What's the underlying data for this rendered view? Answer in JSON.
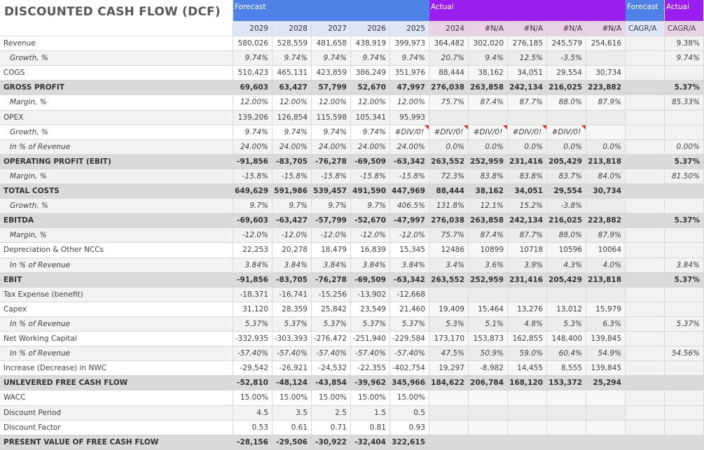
{
  "title": "DISCOUNTED CASH FLOW (DCF)",
  "colors": {
    "forecast_header": "#4f81e6",
    "actual_header": "#9b1ef0",
    "subheader_pink": "#ead1e4",
    "shaded_row": "#dadada",
    "light_row": "#f2f2f2",
    "error_flag": "#e0302a"
  },
  "headers": {
    "forecast": "Forecast",
    "actual": "Actual",
    "cagr_forecast": "Forecast",
    "cagr_actual": "Actual",
    "years": [
      "2029",
      "2028",
      "2027",
      "2026",
      "2025",
      "2024",
      "#N/A",
      "#N/A",
      "#N/A",
      "#N/A"
    ],
    "cagr_forecast_sub": "CAGR/A",
    "cagr_actual_sub": "CAGR/A"
  },
  "rows": [
    {
      "label": "Revenue",
      "style": "normal",
      "values": [
        "580,026",
        "528,559",
        "481,658",
        "438,919",
        "399,973",
        "364,482",
        "302,020",
        "276,185",
        "245,579",
        "254,616",
        "",
        "9.38%"
      ]
    },
    {
      "label": "Growth, %",
      "style": "sub",
      "values": [
        "9.74%",
        "9.74%",
        "9.74%",
        "9.74%",
        "9.74%",
        "20.7%",
        "9.4%",
        "12.5%",
        "-3.5%",
        "",
        "",
        "9.74%"
      ]
    },
    {
      "label": "COGS",
      "style": "normal",
      "values": [
        "510,423",
        "465,131",
        "423,859",
        "386,249",
        "351,976",
        "88,444",
        "38,162",
        "34,051",
        "29,554",
        "30,734",
        "",
        ""
      ]
    },
    {
      "label": "GROSS PROFIT",
      "style": "bold",
      "values": [
        "69,603",
        "63,427",
        "57,799",
        "52,670",
        "47,997",
        "276,038",
        "263,858",
        "242,134",
        "216,025",
        "223,882",
        "",
        "5.37%"
      ]
    },
    {
      "label": "Margin, %",
      "style": "sub",
      "values": [
        "12.00%",
        "12.00%",
        "12.00%",
        "12.00%",
        "12.00%",
        "75.7%",
        "87.4%",
        "87.7%",
        "88.0%",
        "87.9%",
        "",
        "85.33%"
      ]
    },
    {
      "label": "OPEX",
      "style": "normal",
      "values": [
        "139,206",
        "126,854",
        "115,598",
        "105,341",
        "95,993",
        "",
        "",
        "",
        "",
        "",
        "",
        ""
      ]
    },
    {
      "label": "Growth, %",
      "style": "sub",
      "values": [
        "9.74%",
        "9.74%",
        "9.74%",
        "9.74%",
        "#DIV/0!",
        "#DIV/0!",
        "#DIV/0!",
        "#DIV/0!",
        "#DIV/0!",
        "",
        "",
        ""
      ]
    },
    {
      "label": "In % of Revenue",
      "style": "sub",
      "values": [
        "24.00%",
        "24.00%",
        "24.00%",
        "24.00%",
        "24.00%",
        "0.0%",
        "0.0%",
        "0.0%",
        "0.0%",
        "0.0%",
        "",
        "0.00%"
      ]
    },
    {
      "label": "OPERATING PROFIT (EBIT)",
      "style": "bold",
      "values": [
        "-91,856",
        "-83,705",
        "-76,278",
        "-69,509",
        "-63,342",
        "263,552",
        "252,959",
        "231,416",
        "205,429",
        "213,818",
        "",
        "5.37%"
      ]
    },
    {
      "label": "Margin, %",
      "style": "sub",
      "values": [
        "-15.8%",
        "-15.8%",
        "-15.8%",
        "-15.8%",
        "-15.8%",
        "72.3%",
        "83.8%",
        "83.8%",
        "83.7%",
        "84.0%",
        "",
        "81.50%"
      ]
    },
    {
      "label": "TOTAL COSTS",
      "style": "bold",
      "values": [
        "649,629",
        "591,986",
        "539,457",
        "491,590",
        "447,969",
        "88,444",
        "38,162",
        "34,051",
        "29,554",
        "30,734",
        "",
        ""
      ]
    },
    {
      "label": "Growth, %",
      "style": "sub",
      "values": [
        "9.7%",
        "9.7%",
        "9.7%",
        "9.7%",
        "406.5%",
        "131.8%",
        "12.1%",
        "15.2%",
        "-3.8%",
        "",
        "",
        ""
      ]
    },
    {
      "label": "EBITDA",
      "style": "bold",
      "values": [
        "-69,603",
        "-63,427",
        "-57,799",
        "-52,670",
        "-47,997",
        "276,038",
        "263,858",
        "242,134",
        "216,025",
        "223,882",
        "",
        "5.37%"
      ]
    },
    {
      "label": "Margin, %",
      "style": "sub",
      "values": [
        "-12.0%",
        "-12.0%",
        "-12.0%",
        "-12.0%",
        "-12.0%",
        "75.7%",
        "87.4%",
        "87.7%",
        "88.0%",
        "87.9%",
        "",
        ""
      ]
    },
    {
      "label": "Depreciation & Other NCCs",
      "style": "normal",
      "values": [
        "22,253",
        "20,278",
        "18,479",
        "16,839",
        "15,345",
        "12486",
        "10899",
        "10718",
        "10596",
        "10064",
        "",
        ""
      ]
    },
    {
      "label": "In % of Revenue",
      "style": "sub",
      "values": [
        "3.84%",
        "3.84%",
        "3.84%",
        "3.84%",
        "3.84%",
        "3.4%",
        "3.6%",
        "3.9%",
        "4.3%",
        "4.0%",
        "",
        "3.84%"
      ]
    },
    {
      "label": "EBIT",
      "style": "bold",
      "values": [
        "-91,856",
        "-83,705",
        "-76,278",
        "-69,509",
        "-63,342",
        "263,552",
        "252,959",
        "231,416",
        "205,429",
        "213,818",
        "",
        "5.37%"
      ]
    },
    {
      "label": "Tax Expense (benefit)",
      "style": "normal",
      "values": [
        "-18,371",
        "-16,741",
        "-15,256",
        "-13,902",
        "-12,668",
        "",
        "",
        "",
        "",
        "",
        "",
        ""
      ]
    },
    {
      "label": "Capex",
      "style": "normal",
      "values": [
        "31,120",
        "28,359",
        "25,842",
        "23,549",
        "21,460",
        "19,409",
        "15,464",
        "13,276",
        "13,012",
        "15,979",
        "",
        ""
      ]
    },
    {
      "label": "In % of Revenue",
      "style": "sub",
      "values": [
        "5.37%",
        "5.37%",
        "5.37%",
        "5.37%",
        "5.37%",
        "5.3%",
        "5.1%",
        "4.8%",
        "5.3%",
        "6.3%",
        "",
        "5.37%"
      ]
    },
    {
      "label": "Net Working Capital",
      "style": "normal",
      "values": [
        "-332,935",
        "-303,393",
        "-276,472",
        "-251,940",
        "-229,584",
        "173,170",
        "153,873",
        "162,855",
        "148,400",
        "139,845",
        "",
        ""
      ]
    },
    {
      "label": "In % of Revenue",
      "style": "sub",
      "values": [
        "-57.40%",
        "-57.40%",
        "-57.40%",
        "-57.40%",
        "-57.40%",
        "47.5%",
        "50.9%",
        "59.0%",
        "60.4%",
        "54.9%",
        "",
        "54.56%"
      ]
    },
    {
      "label": "Increase (Decrease) in NWC",
      "style": "normal",
      "values": [
        "-29,542",
        "-26,921",
        "-24,532",
        "-22,355",
        "-402,754",
        "19,297",
        "-8,982",
        "14,455",
        "8,555",
        "139,845",
        "",
        ""
      ]
    },
    {
      "label": "UNLEVERED FREE CASH FLOW",
      "style": "bold",
      "values": [
        "-52,810",
        "-48,124",
        "-43,854",
        "-39,962",
        "345,966",
        "184,622",
        "206,784",
        "168,120",
        "153,372",
        "25,294",
        "",
        ""
      ]
    },
    {
      "label": "WACC",
      "style": "normal",
      "values": [
        "15.00%",
        "15.00%",
        "15.00%",
        "15.00%",
        "15.00%",
        "",
        "",
        "",
        "",
        "",
        "",
        ""
      ]
    },
    {
      "label": "Discount Period",
      "style": "normal",
      "values": [
        "4.5",
        "3.5",
        "2.5",
        "1.5",
        "0.5",
        "",
        "",
        "",
        "",
        "",
        "",
        ""
      ]
    },
    {
      "label": "Discount Factor",
      "style": "normal",
      "values": [
        "0.53",
        "0.61",
        "0.71",
        "0.81",
        "0.93",
        "",
        "",
        "",
        "",
        "",
        "",
        ""
      ]
    },
    {
      "label": "PRESENT VALUE OF FREE CASH FLOW",
      "style": "bold",
      "values": [
        "-28,156",
        "-29,506",
        "-30,922",
        "-32,404",
        "322,615",
        "",
        "",
        "",
        "",
        "",
        "",
        ""
      ]
    }
  ]
}
